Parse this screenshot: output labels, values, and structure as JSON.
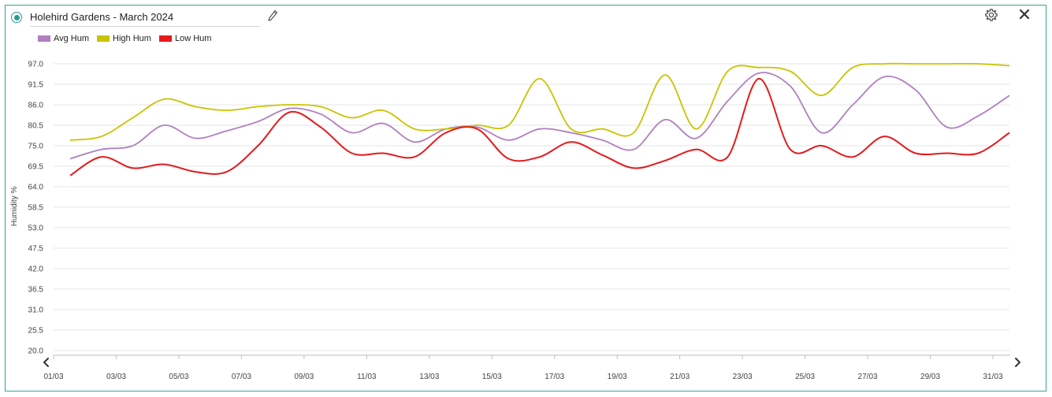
{
  "header": {
    "title": "Holehird Gardens - March 2024"
  },
  "icons": {
    "radio": "radio-selected-icon",
    "edit": "pencil-icon",
    "settings": "gear-icon",
    "close": "close-icon",
    "prev": "chevron-left-icon",
    "next": "chevron-right-icon"
  },
  "colors": {
    "panel_border": "#3aa193",
    "avg": "#b07fc0",
    "high": "#c9c400",
    "low": "#e41a1c"
  },
  "chart_data": {
    "type": "line",
    "title": "",
    "xlabel": "",
    "ylabel": "Humidity %",
    "ylim": [
      20.0,
      97.0
    ],
    "yticks": [
      "97.0",
      "91.5",
      "86.0",
      "80.5",
      "75.0",
      "69.5",
      "64.0",
      "58.5",
      "53.0",
      "47.5",
      "42.0",
      "36.5",
      "31.0",
      "25.5",
      "20.0"
    ],
    "x": [
      1,
      2,
      3,
      4,
      5,
      6,
      7,
      8,
      9,
      10,
      11,
      12,
      13,
      14,
      15,
      16,
      17,
      18,
      19,
      20,
      21,
      22,
      23,
      24,
      25,
      26,
      27,
      28,
      29,
      30,
      31
    ],
    "xticks": [
      "01/03",
      "03/03",
      "05/03",
      "07/03",
      "09/03",
      "11/03",
      "13/03",
      "15/03",
      "17/03",
      "19/03",
      "21/03",
      "23/03",
      "25/03",
      "27/03",
      "29/03",
      "31/03"
    ],
    "legend_position": "top-left",
    "grid": true,
    "series": [
      {
        "name": "Avg Hum",
        "color": "#b07fc0",
        "values": [
          71.5,
          74.0,
          75.0,
          80.5,
          77.0,
          79.0,
          81.5,
          85.0,
          83.5,
          78.5,
          81.0,
          76.0,
          79.5,
          80.0,
          76.5,
          79.5,
          78.5,
          76.5,
          74.0,
          82.0,
          77.0,
          87.0,
          94.5,
          91.0,
          78.5,
          86.0,
          93.5,
          90.0,
          80.0,
          83.0,
          88.5
        ]
      },
      {
        "name": "High Hum",
        "color": "#c9c400",
        "values": [
          76.5,
          77.5,
          82.5,
          87.5,
          85.5,
          84.5,
          85.5,
          86.0,
          85.5,
          82.5,
          84.5,
          79.5,
          79.5,
          80.5,
          80.5,
          93.0,
          79.5,
          79.5,
          78.5,
          94.0,
          79.5,
          95.0,
          96.0,
          95.0,
          88.5,
          96.0,
          97.0,
          97.0,
          97.0,
          97.0,
          96.5
        ]
      },
      {
        "name": "Low Hum",
        "color": "#e41a1c",
        "values": [
          67.0,
          72.0,
          69.0,
          70.0,
          68.0,
          68.0,
          75.0,
          84.0,
          80.0,
          73.0,
          73.0,
          72.0,
          78.5,
          79.5,
          71.5,
          72.0,
          76.0,
          72.5,
          69.0,
          71.0,
          74.0,
          72.0,
          93.0,
          74.0,
          75.0,
          72.0,
          77.5,
          73.0,
          73.0,
          73.0,
          78.5
        ]
      }
    ]
  }
}
